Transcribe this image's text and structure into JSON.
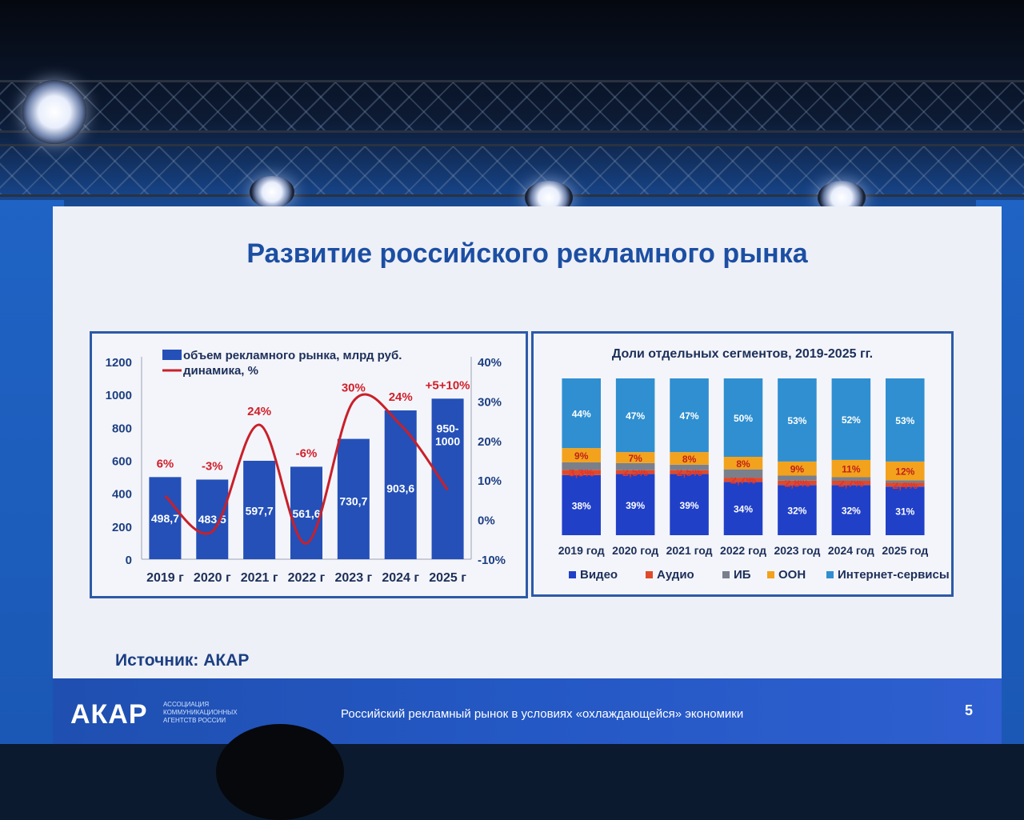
{
  "slide": {
    "title": "Развитие российского рекламного рынка",
    "source": "Источник: АКАР",
    "footer_text": "Российский рекламный рынок в условиях «охлаждающейся» экономики",
    "page_number": "5",
    "logo": "АКАР",
    "logo_sub": [
      "АССОЦИАЦИЯ",
      "КОММУНИКАЦИОННЫХ",
      "АГЕНТСТВ РОССИИ"
    ]
  },
  "chart_data": [
    {
      "type": "bar",
      "title": "",
      "categories": [
        "2019 г",
        "2020 г",
        "2021 г",
        "2022 г",
        "2023 г",
        "2024 г",
        "2025 г"
      ],
      "series": [
        {
          "name": "объем рекламного рынка, млрд руб.",
          "type": "bar",
          "axis": "left",
          "values": [
            498.7,
            483.5,
            597.7,
            561.6,
            730.7,
            903.6,
            975
          ],
          "labels": [
            "498,7",
            "483,5",
            "597,7",
            "561,6",
            "730,7",
            "903,6",
            "950-\n1000"
          ]
        },
        {
          "name": "динамика, %",
          "type": "line",
          "axis": "right",
          "values": [
            6,
            -3,
            24,
            -6,
            30,
            24,
            7.5
          ],
          "labels": [
            "6%",
            "-3%",
            "24%",
            "-6%",
            "30%",
            "24%",
            "+5+10%"
          ]
        }
      ],
      "ylim_left": [
        0,
        1200
      ],
      "yticks_left": [
        "0",
        "200",
        "400",
        "600",
        "800",
        "1000",
        "1200"
      ],
      "ylim_right": [
        -10,
        40
      ],
      "yticks_right": [
        "-10%",
        "0%",
        "10%",
        "20%",
        "30%",
        "40%"
      ],
      "legend": "top-left",
      "colors": {
        "bar": "#2450b8",
        "line": "#c8202a",
        "label_red": "#d0202a"
      }
    },
    {
      "type": "bar",
      "stacked": true,
      "normalized": true,
      "title": "Доли отдельных сегментов, 2019-2025 гг.",
      "categories": [
        "2019 год",
        "2020 год",
        "2021 год",
        "2022 год",
        "2023 год",
        "2024 год",
        "2025 год"
      ],
      "series": [
        {
          "name": "Видео",
          "values": [
            38,
            39,
            39,
            34,
            32,
            32,
            31
          ],
          "labels": [
            "38%",
            "39%",
            "39%",
            "34%",
            "32%",
            "32%",
            "31%"
          ],
          "color": "#2140c8"
        },
        {
          "name": "Аудио",
          "values": [
            3.3,
            2.5,
            2.5,
            2.7,
            2.8,
            2.7,
            2.4
          ],
          "labels": [
            "3,3%",
            "2,5%",
            "2,5%",
            "2,7%",
            "2,8%",
            "2,7%",
            "2,4%"
          ],
          "color": "#e04a2a"
        },
        {
          "name": "ИБ",
          "values": [
            4.7,
            4.5,
            3.5,
            5.3,
            3.2,
            2.3,
            1.6
          ],
          "labels": [
            "",
            "",
            "",
            "",
            "",
            "",
            ""
          ],
          "color": "#7a7f8c"
        },
        {
          "name": "ООН",
          "values": [
            9,
            7,
            8,
            8,
            9,
            11,
            12
          ],
          "labels": [
            "9%",
            "7%",
            "8%",
            "8%",
            "9%",
            "11%",
            "12%"
          ],
          "color": "#f2a21c"
        },
        {
          "name": "Интернет-сервисы",
          "values": [
            44,
            47,
            47,
            50,
            53,
            52,
            53
          ],
          "labels": [
            "44%",
            "47%",
            "47%",
            "50%",
            "53%",
            "52%",
            "53%"
          ],
          "color": "#2f8fd0"
        }
      ],
      "ylim": [
        0,
        100
      ],
      "legend": "bottom"
    }
  ]
}
